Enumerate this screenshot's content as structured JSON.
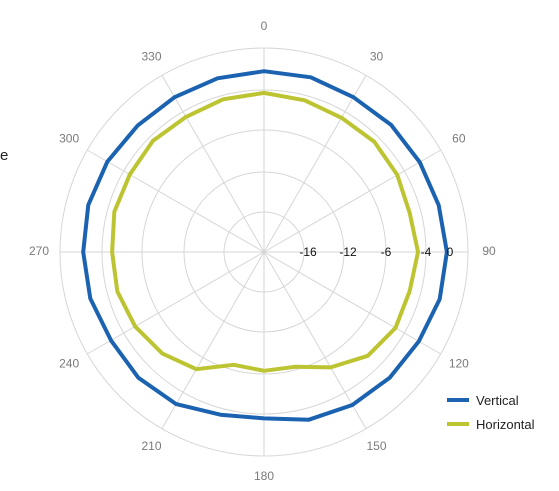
{
  "partial_text": "e",
  "chart_data": {
    "type": "polar",
    "angles": [
      0,
      15,
      30,
      45,
      60,
      75,
      90,
      105,
      120,
      135,
      150,
      165,
      180,
      195,
      210,
      225,
      240,
      255,
      270,
      285,
      300,
      315,
      330,
      345
    ],
    "angle_labels": [
      "0",
      "30",
      "60",
      "90",
      "120",
      "150",
      "180",
      "210",
      "240",
      "270",
      "300",
      "330"
    ],
    "radial_ticks": [
      "-16",
      "-12",
      "-6",
      "-4",
      "0"
    ],
    "series": [
      {
        "name": "Vertical",
        "color": "#1b63b0",
        "values": [
          -0.5,
          -0.5,
          -0.7,
          -0.6,
          -0.6,
          -0.5,
          -0.3,
          -0.4,
          -0.7,
          -0.8,
          -0.9,
          -1.2,
          -1.9,
          -1.7,
          -1.0,
          -0.8,
          -0.9,
          -0.6,
          -0.5,
          -0.4,
          -0.5,
          -0.7,
          -0.7,
          -0.6
        ]
      },
      {
        "name": "Horizontal",
        "color": "#bdc431",
        "values": [
          -2.6,
          -2.8,
          -3.0,
          -2.9,
          -3.1,
          -3.4,
          -3.1,
          -3.4,
          -3.3,
          -3.8,
          -5.1,
          -6.5,
          -6.5,
          -6.7,
          -4.9,
          -4.1,
          -3.6,
          -3.3,
          -3.3,
          -3.0,
          -3.0,
          -2.8,
          -2.9,
          -2.7
        ]
      }
    ],
    "grid": true,
    "legend_position": "bottom-right"
  }
}
